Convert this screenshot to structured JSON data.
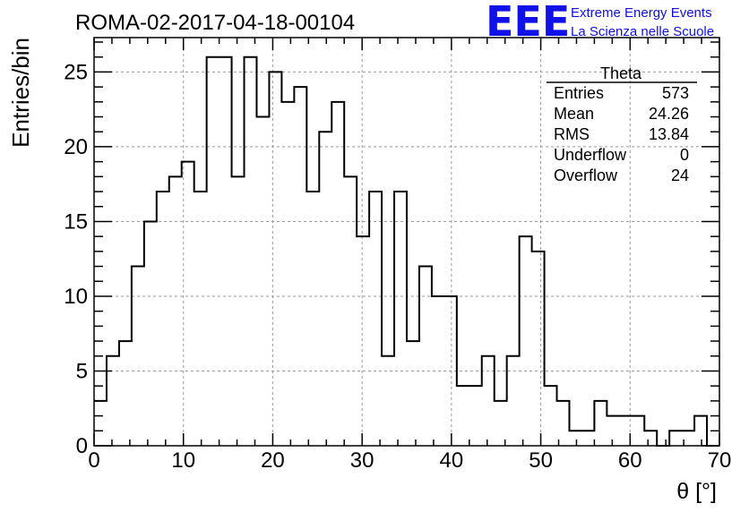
{
  "chart_data": {
    "type": "histogram",
    "title": "ROMA-02-2017-04-18-00104",
    "xlabel": "θ [°]",
    "ylabel": "Entries/bin",
    "xlim": [
      0,
      70
    ],
    "ylim": [
      0,
      27.3
    ],
    "bin_width": 1.4,
    "grid": true,
    "x_ticks": [
      0,
      10,
      20,
      30,
      40,
      50,
      60,
      70
    ],
    "y_ticks": [
      0,
      5,
      10,
      15,
      20,
      25
    ],
    "values": [
      3,
      6,
      7,
      12,
      15,
      17,
      18,
      19,
      17,
      26,
      26,
      18,
      26,
      22,
      25,
      23,
      24,
      17,
      21,
      23,
      18,
      14,
      17,
      6,
      17,
      7,
      12,
      10,
      10,
      4,
      4,
      6,
      3,
      6,
      14,
      13,
      4,
      3,
      1,
      1,
      3,
      2,
      2,
      2,
      1,
      0,
      1,
      1,
      2,
      0
    ],
    "stats": {
      "name": "Theta",
      "rows": [
        {
          "label": "Entries",
          "value": "573"
        },
        {
          "label": "Mean",
          "value": "24.26"
        },
        {
          "label": "RMS",
          "value": "13.84"
        },
        {
          "label": "Underflow",
          "value": "0"
        },
        {
          "label": "Overflow",
          "value": "24"
        }
      ]
    }
  },
  "logo": {
    "text": "EEE",
    "line1": "Extreme Energy Events",
    "line2": "La Scienza nelle Scuole",
    "color": "#1010e8"
  },
  "colors": {
    "line": "#000000",
    "grid": "#9a9a9a"
  }
}
